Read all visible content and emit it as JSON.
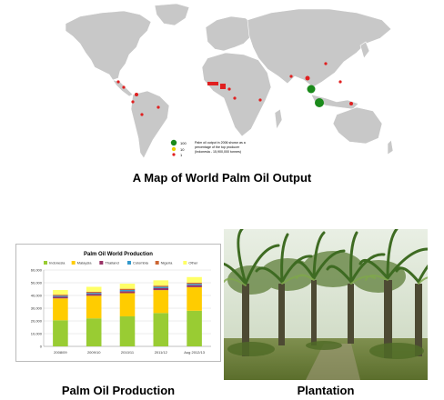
{
  "map_caption": "A Map of World Palm Oil Output",
  "map_legend": {
    "items": [
      "100",
      "10",
      "1"
    ],
    "desc_line1": "Palm oil output in 2006 shown as a",
    "desc_line2": "percentage of the top producer",
    "desc_line3": "(Indonesia - 15,900,000 tonnes)",
    "colors": [
      "#1a8a1a",
      "#e8d000",
      "#e02020"
    ]
  },
  "chart_caption": "Palm Oil Production",
  "photo_caption": "Plantation",
  "chart_data": {
    "type": "bar",
    "stacked": true,
    "title": "Palm Oil World Production",
    "categories": [
      "2008/09",
      "2009/10",
      "2010/11",
      "2011/12",
      "Aug 2012/13"
    ],
    "ylim": [
      0,
      60000
    ],
    "yticks": [
      "0",
      "10,000",
      "20,000",
      "30,000",
      "40,000",
      "50,000",
      "60,000"
    ],
    "legend_position": "top",
    "series": [
      {
        "name": "Indonesia",
        "color": "#99cc33",
        "values": [
          20500,
          22000,
          23600,
          26200,
          28000
        ]
      },
      {
        "name": "Malaysia",
        "color": "#ffcc00",
        "values": [
          17200,
          17800,
          18200,
          18000,
          18500
        ]
      },
      {
        "name": "Thailand",
        "color": "#993366",
        "values": [
          1200,
          1300,
          1500,
          1550,
          1600
        ]
      },
      {
        "name": "Colombia",
        "color": "#3399cc",
        "values": [
          800,
          900,
          1000,
          1000,
          1000
        ]
      },
      {
        "name": "Nigeria",
        "color": "#cc6633",
        "values": [
          900,
          900,
          950,
          950,
          950
        ]
      },
      {
        "name": "Other",
        "color": "#ffff66",
        "values": [
          3700,
          3900,
          4000,
          4200,
          4400
        ]
      }
    ]
  }
}
